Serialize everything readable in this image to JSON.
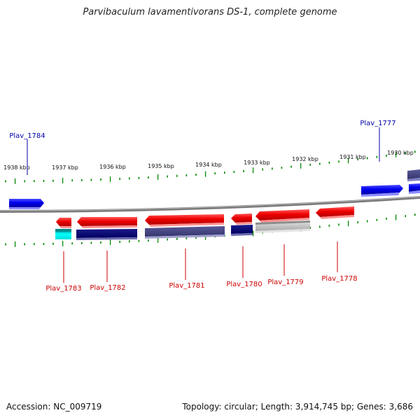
{
  "title": "Parvibaculum lavamentivorans DS-1, complete genome",
  "accession": "Accession: NC_009719",
  "summary": "Topology: circular; Length: 3,914,745 bp; Genes: 3,686",
  "colors": {
    "strand_plus": "#0000ee",
    "strand_minus": "#ee0000",
    "ticks": "#008800",
    "backbone": "#888888"
  },
  "scale_labels": [
    "1938 kbp",
    "1937 kbp",
    "1936 kbp",
    "1935 kbp",
    "1934 kbp",
    "1933 kbp",
    "1932 kbp",
    "1931 kbp",
    "1930 kbp"
  ],
  "gene_labels": {
    "plav_1784": "Plav_1784",
    "plav_1777": "Plav_1777",
    "plav_1783": "Plav_1783",
    "plav_1782": "Plav_1782",
    "plav_1781": "Plav_1781",
    "plav_1780": "Plav_1780",
    "plav_1779": "Plav_1779",
    "plav_1778": "Plav_1778"
  }
}
